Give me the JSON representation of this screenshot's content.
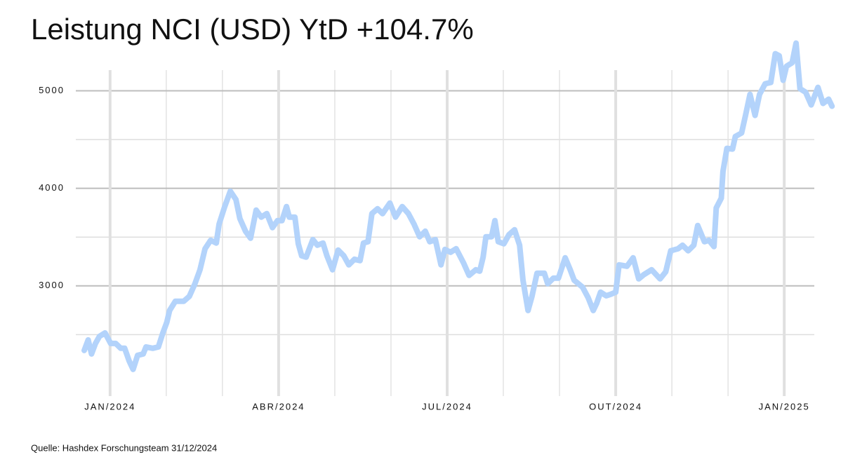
{
  "chart_data": {
    "type": "line",
    "title": "Leistung NCI (USD) YtD +104.7%",
    "source": "Quelle: Hashdex Forschungsteam 31/12/2024",
    "x": [
      -0.46,
      -0.39,
      -0.33,
      -0.26,
      -0.19,
      -0.09,
      0.01,
      0.1,
      0.19,
      0.26,
      0.34,
      0.41,
      0.49,
      0.59,
      0.64,
      0.76,
      0.86,
      0.94,
      1.01,
      1.06,
      1.16,
      1.31,
      1.41,
      1.51,
      1.6,
      1.69,
      1.79,
      1.89,
      1.94,
      2.04,
      2.14,
      2.24,
      2.31,
      2.41,
      2.5,
      2.6,
      2.69,
      2.79,
      2.89,
      2.98,
      3.06,
      3.14,
      3.19,
      3.29,
      3.35,
      3.41,
      3.49,
      3.61,
      3.69,
      3.79,
      3.86,
      3.96,
      4.06,
      4.16,
      4.25,
      4.35,
      4.45,
      4.51,
      4.59,
      4.66,
      4.76,
      4.85,
      4.98,
      5.08,
      5.2,
      5.31,
      5.41,
      5.51,
      5.61,
      5.69,
      5.79,
      5.89,
      5.96,
      6.06,
      6.16,
      6.29,
      6.39,
      6.51,
      6.58,
      6.64,
      6.69,
      6.79,
      6.85,
      6.91,
      7.01,
      7.1,
      7.2,
      7.29,
      7.35,
      7.44,
      7.51,
      7.6,
      7.73,
      7.79,
      7.89,
      7.98,
      8.1,
      8.19,
      8.26,
      8.41,
      8.51,
      8.6,
      8.66,
      8.73,
      8.83,
      8.91,
      9,
      9.06,
      9.2,
      9.31,
      9.41,
      9.5,
      9.64,
      9.79,
      9.89,
      9.98,
      10.11,
      10.19,
      10.29,
      10.39,
      10.46,
      10.58,
      10.66,
      10.75,
      10.79,
      10.88,
      10.91,
      10.98,
      11.08,
      11.13,
      11.24,
      11.31,
      11.39,
      11.48,
      11.56,
      11.66,
      11.76,
      11.84,
      11.91,
      11.98,
      12.04,
      12.14,
      12.21,
      12.28,
      12.38,
      12.48,
      12.6,
      12.69,
      12.79,
      12.85
    ],
    "series": [
      {
        "name": "NCI",
        "color": "#b3d3fb",
        "values": [
          2338,
          2446,
          2302,
          2410,
          2482,
          2518,
          2410,
          2410,
          2360,
          2360,
          2230,
          2144,
          2288,
          2302,
          2374,
          2360,
          2374,
          2518,
          2626,
          2748,
          2842,
          2842,
          2892,
          3022,
          3165,
          3381,
          3468,
          3439,
          3633,
          3813,
          3971,
          3885,
          3691,
          3561,
          3489,
          3777,
          3705,
          3741,
          3597,
          3669,
          3669,
          3813,
          3705,
          3705,
          3432,
          3309,
          3295,
          3475,
          3417,
          3439,
          3309,
          3165,
          3367,
          3309,
          3216,
          3273,
          3259,
          3439,
          3453,
          3741,
          3791,
          3741,
          3849,
          3705,
          3813,
          3741,
          3633,
          3504,
          3561,
          3453,
          3475,
          3216,
          3374,
          3345,
          3381,
          3237,
          3108,
          3165,
          3151,
          3295,
          3504,
          3504,
          3669,
          3453,
          3432,
          3525,
          3576,
          3417,
          3058,
          2748,
          2892,
          3130,
          3130,
          3022,
          3079,
          3079,
          3288,
          3165,
          3058,
          2986,
          2878,
          2748,
          2820,
          2935,
          2899,
          2914,
          2935,
          3216,
          3201,
          3288,
          3072,
          3115,
          3165,
          3072,
          3144,
          3360,
          3381,
          3417,
          3360,
          3417,
          3619,
          3453,
          3468,
          3403,
          3799,
          3899,
          4173,
          4410,
          4403,
          4532,
          4568,
          4748,
          4964,
          4748,
          4964,
          5072,
          5086,
          5381,
          5360,
          5108,
          5252,
          5288,
          5489,
          5022,
          4986,
          4856,
          5036,
          4871,
          4914,
          4842
        ]
      }
    ],
    "xlim": [
      -0.61,
      12.91
    ],
    "xticks": [
      {
        "value": 0,
        "label": "JAN/2024"
      },
      {
        "value": 3,
        "label": "ABR/2024"
      },
      {
        "value": 6,
        "label": "JUL/2024"
      },
      {
        "value": 9,
        "label": "OUT/2024"
      },
      {
        "value": 12,
        "label": "JAN/2025"
      }
    ],
    "xminor": [
      1,
      2,
      4,
      5,
      7,
      8,
      10,
      11
    ],
    "ylim": [
      1906,
      5500
    ],
    "yticks": [
      3000,
      4000,
      5000
    ],
    "yminor": [
      2500,
      3500,
      4500
    ],
    "grid": true
  }
}
